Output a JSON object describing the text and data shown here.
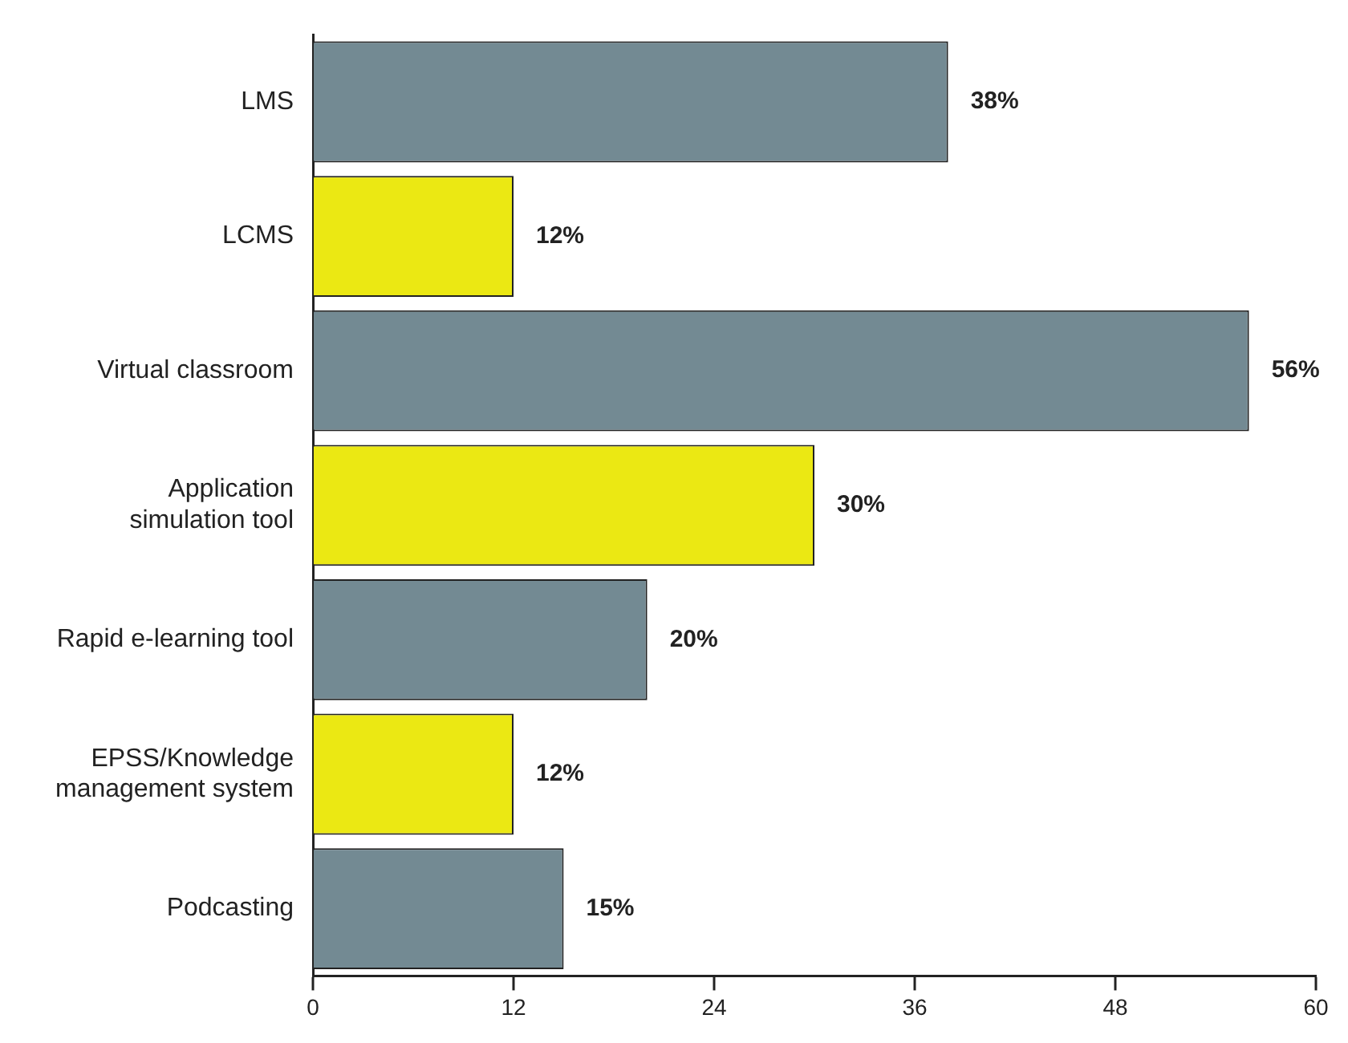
{
  "chart_data": {
    "type": "bar",
    "orientation": "horizontal",
    "categories": [
      "LMS",
      "LCMS",
      "Virtual classroom",
      "Application simulation tool",
      "Rapid e-learning tool",
      "EPSS/Knowledge management system",
      "Podcasting"
    ],
    "values": [
      38,
      12,
      56,
      30,
      20,
      12,
      15
    ],
    "colors": [
      "#738a93",
      "#ebe813",
      "#738a93",
      "#ebe813",
      "#738a93",
      "#ebe813",
      "#738a93"
    ],
    "value_labels": [
      "38%",
      "12%",
      "56%",
      "30%",
      "20%",
      "12%",
      "15%"
    ],
    "xlim": [
      0,
      60
    ],
    "xticks": [
      0,
      12,
      24,
      36,
      48,
      60
    ],
    "grid": false,
    "legend": false
  }
}
